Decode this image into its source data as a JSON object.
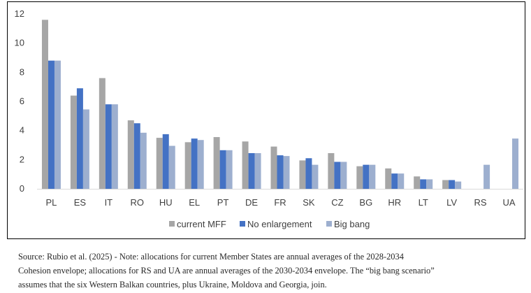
{
  "chart_data": {
    "type": "bar",
    "categories": [
      "PL",
      "ES",
      "IT",
      "RO",
      "HU",
      "EL",
      "PT",
      "DE",
      "FR",
      "SK",
      "CZ",
      "BG",
      "HR",
      "LT",
      "LV",
      "RS",
      "UA"
    ],
    "series": [
      {
        "name": "current MFF",
        "color": "#a6a6a6",
        "values": [
          11.6,
          6.4,
          7.6,
          4.7,
          3.5,
          3.2,
          3.55,
          3.25,
          2.9,
          1.95,
          2.45,
          1.55,
          1.4,
          0.85,
          0.6,
          null,
          null
        ]
      },
      {
        "name": "No enlargement",
        "color": "#4472c4",
        "values": [
          8.8,
          6.9,
          5.8,
          4.5,
          3.75,
          3.45,
          2.65,
          2.45,
          2.3,
          2.1,
          1.85,
          1.65,
          1.05,
          0.65,
          0.6,
          null,
          null
        ]
      },
      {
        "name": "Big bang",
        "color": "#9dafcf",
        "values": [
          8.8,
          5.45,
          5.8,
          3.85,
          2.95,
          3.35,
          2.65,
          2.45,
          2.25,
          1.65,
          1.85,
          1.65,
          1.05,
          0.65,
          0.5,
          1.65,
          3.45
        ]
      }
    ],
    "y_ticks": [
      "0",
      "2",
      "4",
      "6",
      "8",
      "10",
      "12"
    ],
    "ylim": [
      0,
      12
    ],
    "grid": false,
    "legend_position": "bottom-center"
  },
  "caption": {
    "line1": "Source: Rubio et al. (2025) - Note: allocations for current Member States are annual averages of the 2028-2034",
    "line2": "Cohesion envelope; allocations for RS and UA are annual averages of the 2030-2034 envelope. The “big bang scenario”",
    "line3": "assumes that the six Western Balkan countries, plus Ukraine, Moldova and Georgia, join."
  }
}
